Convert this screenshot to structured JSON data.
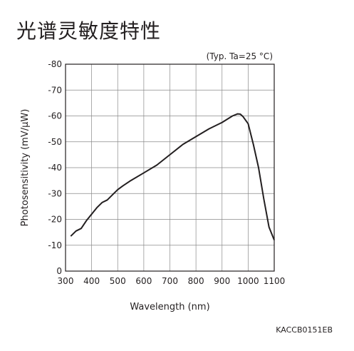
{
  "title": "光谱灵敏度特性",
  "condition": "(Typ. Ta=25 °C)",
  "figure_code": "KACCB0151EB",
  "chart_data": {
    "type": "line",
    "title": "光谱灵敏度特性",
    "xlabel": "Wavelength (nm)",
    "ylabel": "Photosensitivity (mV/μW)",
    "xlim": [
      300,
      1100
    ],
    "ylim": [
      0,
      -80
    ],
    "x_ticks": [
      300,
      400,
      500,
      600,
      700,
      800,
      900,
      1000,
      1100
    ],
    "y_ticks": [
      0,
      -10,
      -20,
      -30,
      -40,
      -50,
      -60,
      -70,
      -80
    ],
    "grid": true,
    "line_color": "#231f20",
    "series": [
      {
        "x": [
          320,
          340,
          360,
          380,
          400,
          420,
          440,
          460,
          480,
          500,
          520,
          550,
          600,
          650,
          700,
          750,
          800,
          850,
          900,
          940,
          960,
          970,
          980,
          1000,
          1020,
          1040,
          1060,
          1080,
          1100
        ],
        "values": [
          -13.5,
          -15.5,
          -16.5,
          -19.5,
          -22,
          -24.5,
          -26.5,
          -27.5,
          -29.5,
          -31.5,
          -33,
          -35,
          -38,
          -41,
          -45,
          -49,
          -52,
          -55,
          -57.5,
          -60,
          -60.8,
          -60.7,
          -59.8,
          -57,
          -49,
          -40,
          -28,
          -17,
          -12
        ]
      }
    ]
  }
}
